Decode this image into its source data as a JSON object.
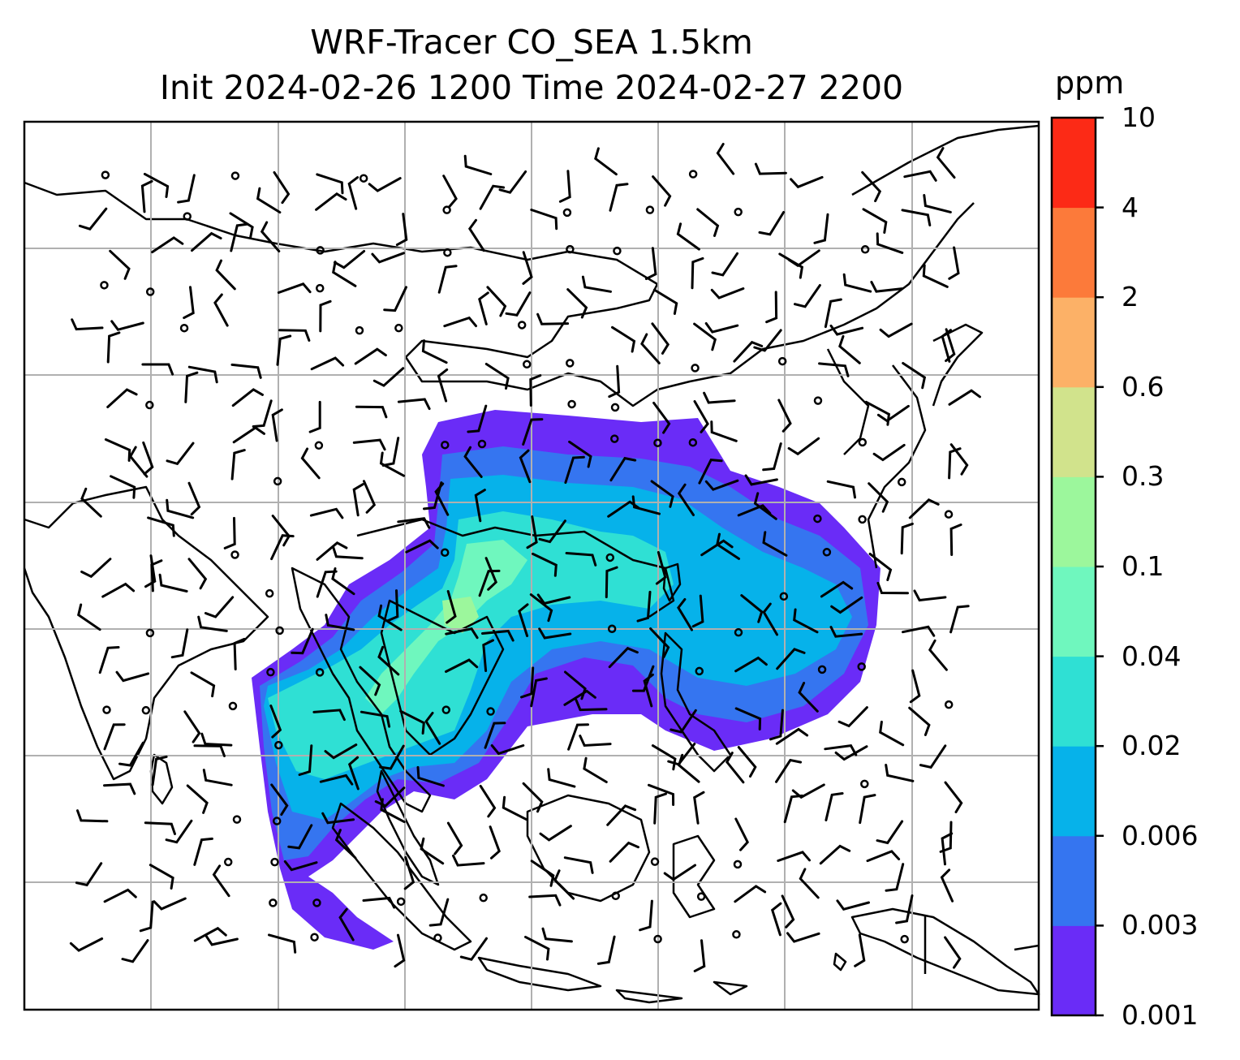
{
  "title": {
    "line1": "WRF-Tracer CO_SEA 1.5km",
    "line2": "Init 2024-02-26 1200 Time 2024-02-27 2200"
  },
  "colorbar": {
    "unit": "ppm",
    "levels": [
      "0.001",
      "0.003",
      "0.006",
      "0.02",
      "0.04",
      "0.1",
      "0.3",
      "0.6",
      "2",
      "4",
      "10"
    ],
    "colors": [
      "#6a2cf7",
      "#3575f0",
      "#06b2ea",
      "#2fe0d4",
      "#6ff7be",
      "#9cf79c",
      "#d1e38c",
      "#fcb167",
      "#fc7a3a",
      "#fc2a16"
    ]
  },
  "map": {
    "grid": true,
    "wind_barbs": true,
    "coastlines": true
  }
}
